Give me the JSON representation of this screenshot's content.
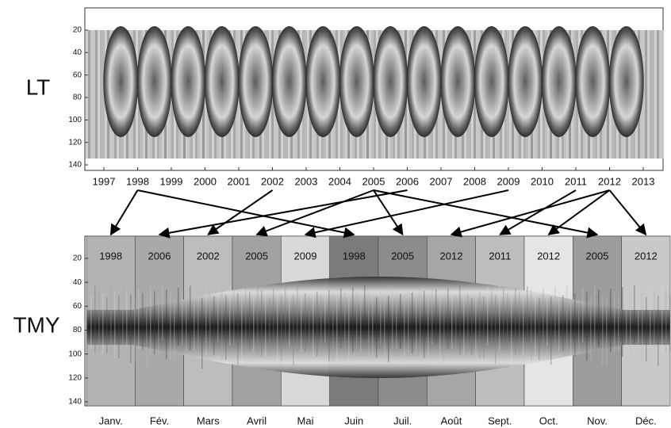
{
  "labels": {
    "top": "LT",
    "bottom": "TMY"
  },
  "top_panel": {
    "yticks": [
      20,
      40,
      60,
      80,
      100,
      120,
      140
    ],
    "years": [
      1997,
      1998,
      1999,
      2000,
      2001,
      2002,
      2003,
      2004,
      2005,
      2006,
      2007,
      2008,
      2009,
      2010,
      2011,
      2012,
      2013
    ]
  },
  "bottom_panel": {
    "yticks": [
      20,
      40,
      60,
      80,
      100,
      120,
      140
    ],
    "months": [
      {
        "label": "Janv.",
        "year": 1998,
        "shade": "#b3b3b3"
      },
      {
        "label": "Fév.",
        "year": 2006,
        "shade": "#a9a9a9"
      },
      {
        "label": "Mars",
        "year": 2002,
        "shade": "#bdbdbd"
      },
      {
        "label": "Avril",
        "year": 2005,
        "shade": "#a2a2a2"
      },
      {
        "label": "Mai",
        "year": 2009,
        "shade": "#d9d9d9"
      },
      {
        "label": "Juin",
        "year": 1998,
        "shade": "#7b7b7b"
      },
      {
        "label": "Juil.",
        "year": 2005,
        "shade": "#8c8c8c"
      },
      {
        "label": "Août",
        "year": 2012,
        "shade": "#a6a6a6"
      },
      {
        "label": "Sept.",
        "year": 2011,
        "shade": "#bebebe"
      },
      {
        "label": "Oct.",
        "year": 2012,
        "shade": "#e5e5e5"
      },
      {
        "label": "Nov.",
        "year": 2005,
        "shade": "#9c9c9c"
      },
      {
        "label": "Déc.",
        "year": 2012,
        "shade": "#c9c9c9"
      }
    ]
  }
}
